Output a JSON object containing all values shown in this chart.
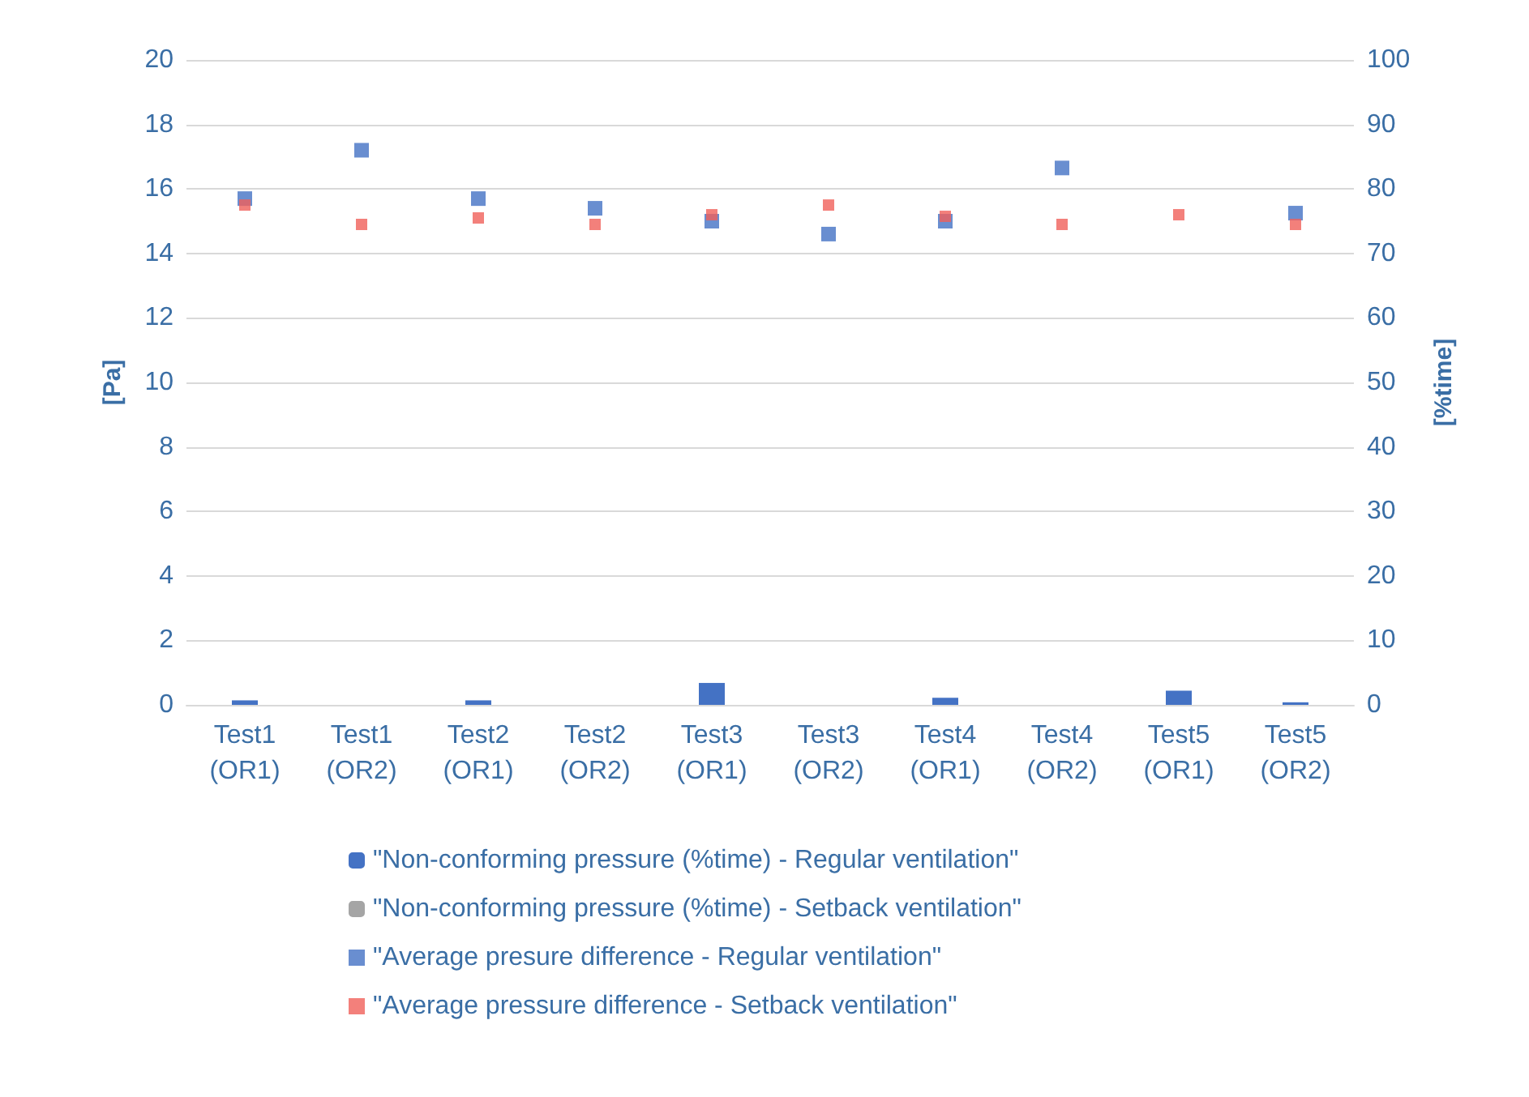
{
  "chart_data": {
    "type": "bar",
    "categories": [
      "Test1 (OR1)",
      "Test1 (OR2)",
      "Test2 (OR1)",
      "Test2 (OR2)",
      "Test3 (OR1)",
      "Test3 (OR2)",
      "Test4 (OR1)",
      "Test4 (OR2)",
      "Test5 (OR1)",
      "Test5 (OR2)"
    ],
    "ylabel": "[Pa]",
    "y2label": "[%time]",
    "ylim": [
      0,
      20
    ],
    "yticks": [
      0,
      2,
      4,
      6,
      8,
      10,
      12,
      14,
      16,
      18,
      20
    ],
    "y2lim": [
      0,
      100
    ],
    "y2ticks": [
      0,
      10,
      20,
      30,
      40,
      50,
      60,
      70,
      80,
      90,
      100
    ],
    "grid": "y",
    "legend": "bottom",
    "series": [
      {
        "name": "\"Non-conforming pressure (%time) - Regular ventilation\"",
        "axis": "y2",
        "color": "#4472c4",
        "values": [
          0.7,
          0,
          0.7,
          0,
          3.4,
          0,
          1.1,
          0,
          2.2,
          0.4
        ]
      },
      {
        "name": "\"Non-conforming pressure (%time) - Setback ventilation\"",
        "axis": "y2",
        "color": "#a5a5a5",
        "values": [
          0,
          0,
          0,
          0,
          0,
          0,
          0,
          0,
          0,
          0
        ]
      },
      {
        "name": "\"Average presure difference - Regular ventilation\"",
        "type": "scatter",
        "marker": "square",
        "color": "#4472c4",
        "values": [
          15.7,
          17.2,
          15.7,
          15.4,
          15.0,
          14.6,
          15.0,
          16.65,
          null,
          15.25
        ]
      },
      {
        "name": "\"Average pressure difference - Setback ventilation\"",
        "type": "scatter",
        "marker": "square",
        "color": "#f0605a",
        "values": [
          15.5,
          14.9,
          15.1,
          14.9,
          15.2,
          15.5,
          15.15,
          14.9,
          15.2,
          14.9
        ]
      }
    ]
  }
}
